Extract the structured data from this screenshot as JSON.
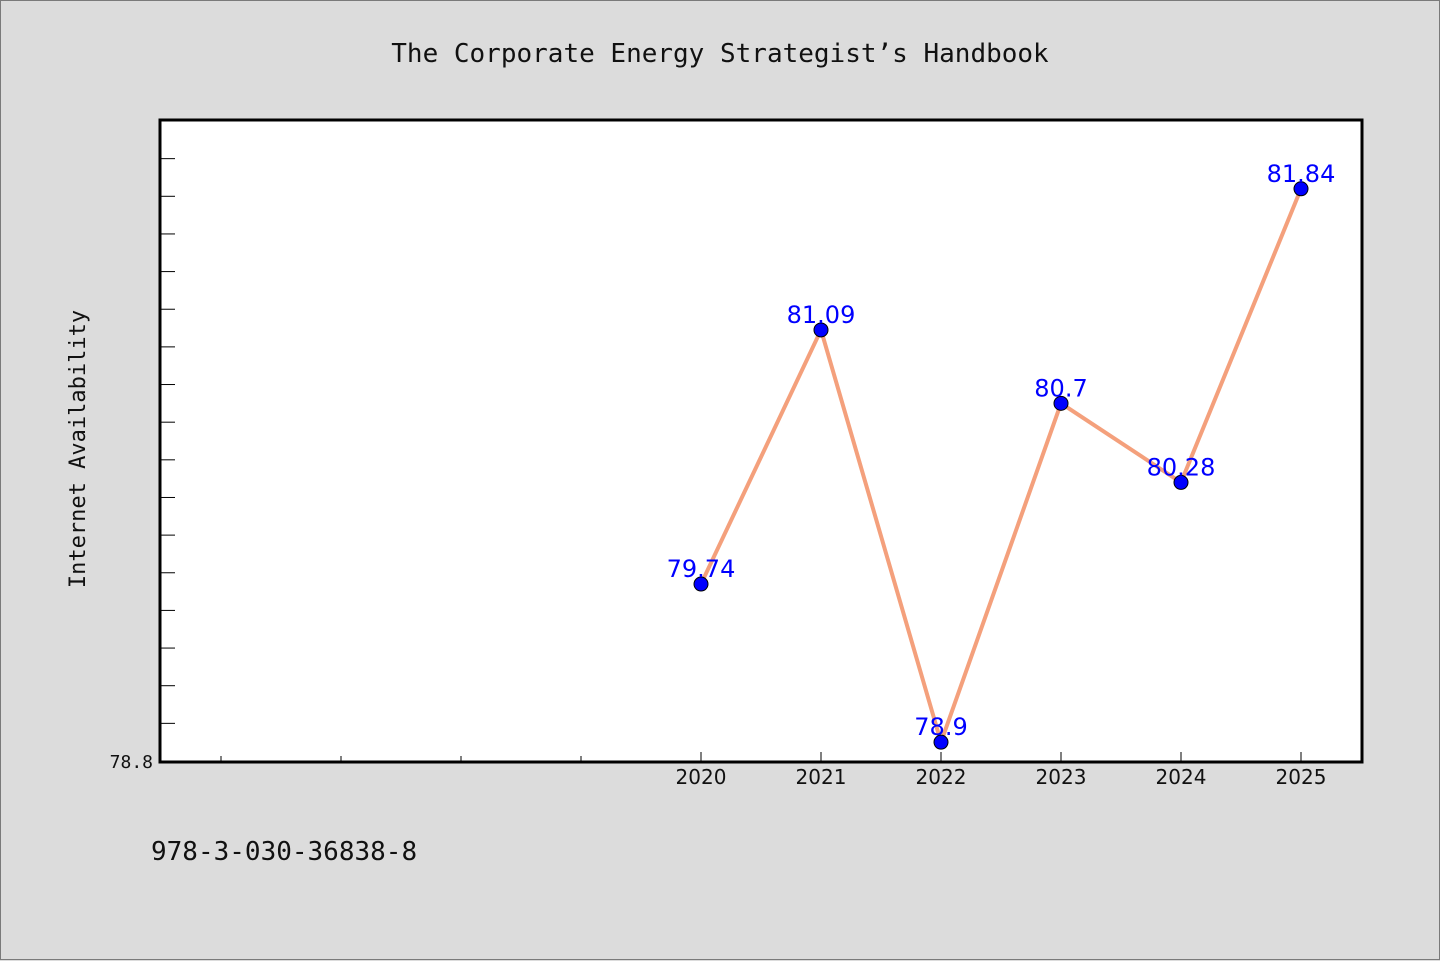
{
  "title": "The Corporate Energy Strategist’s Handbook",
  "isbn": "978-3-030-36838-8",
  "chart_data": {
    "type": "line",
    "title": "The Corporate Energy Strategist’s Handbook",
    "xlabel": "",
    "ylabel": "Internet Availability",
    "x": [
      "2020",
      "2021",
      "2022",
      "2023",
      "2024",
      "2025"
    ],
    "series": [
      {
        "values": [
          79.74,
          81.09,
          78.9,
          80.7,
          80.28,
          81.84
        ],
        "labels": [
          "79.74",
          "81.09",
          "78.9",
          "80.7",
          "80.28",
          "81.84"
        ]
      }
    ],
    "xlim": [
      2015.5,
      2025.5
    ],
    "ylim": [
      78.8,
      82.2
    ],
    "y_tick_label": "78.8",
    "line_color": "#f4a07c",
    "marker_color": "#0000ff",
    "label_color": "#0000ff",
    "grid": false,
    "legend": "none"
  }
}
